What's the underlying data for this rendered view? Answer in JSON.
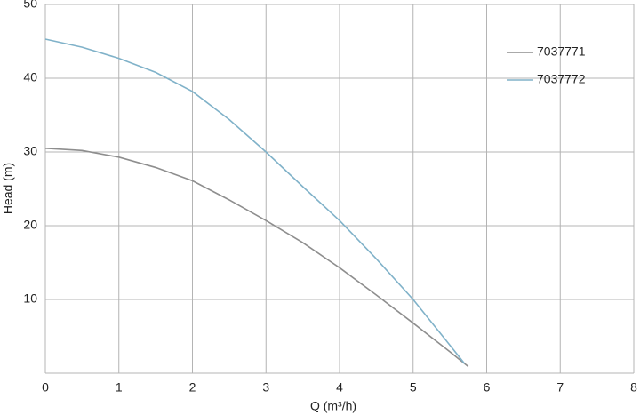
{
  "chart_data": {
    "type": "line",
    "xlabel": "Q (m³/h)",
    "ylabel": "Head (m)",
    "xlim": [
      0,
      8
    ],
    "xticks": [
      0,
      1,
      2,
      3,
      4,
      5,
      6,
      7,
      8
    ],
    "ylim": [
      0,
      50
    ],
    "yticks": [
      10,
      20,
      30,
      40,
      50
    ],
    "grid": true,
    "legend": "upper right",
    "series": [
      {
        "name": "7037771",
        "color": "#8e8e8e",
        "x": [
          0,
          0.5,
          1,
          1.5,
          2,
          2.5,
          3,
          3.5,
          4,
          4.5,
          5,
          5.5,
          5.75
        ],
        "values": [
          30.5,
          30.2,
          29.3,
          27.9,
          26.1,
          23.5,
          20.7,
          17.7,
          14.3,
          10.6,
          6.8,
          2.9,
          0.9
        ]
      },
      {
        "name": "7037772",
        "color": "#80b2c9",
        "x": [
          0,
          0.5,
          1,
          1.5,
          2,
          2.5,
          3,
          3.5,
          4,
          4.5,
          5,
          5.5,
          5.7
        ],
        "values": [
          45.3,
          44.2,
          42.7,
          40.8,
          38.2,
          34.4,
          30.0,
          25.3,
          20.7,
          15.5,
          10.0,
          3.8,
          1.3
        ]
      }
    ]
  }
}
